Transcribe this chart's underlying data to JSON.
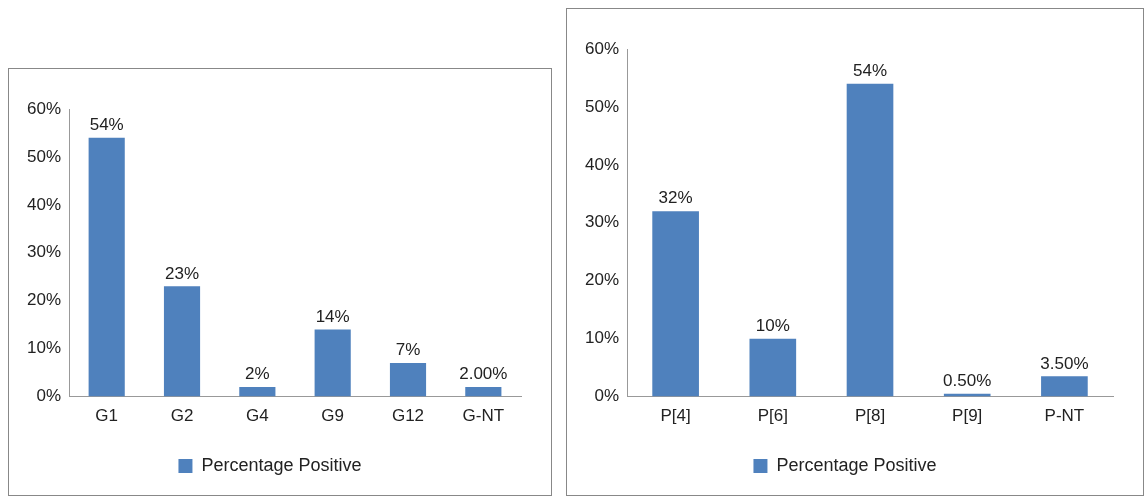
{
  "chart_data": [
    {
      "type": "bar",
      "categories": [
        "G1",
        "G2",
        "G4",
        "G9",
        "G12",
        "G-NT"
      ],
      "series": [
        {
          "name": "Percentage Positive",
          "color": "#4f81bd",
          "values": [
            54,
            23,
            2,
            14,
            7,
            2
          ],
          "value_labels": [
            "54%",
            "23%",
            "2%",
            "14%",
            "7%",
            "2.00%"
          ]
        }
      ],
      "ylim": [
        0,
        60
      ],
      "yticks": [
        {
          "value": 0,
          "label": "0%"
        },
        {
          "value": 10,
          "label": "10%"
        },
        {
          "value": 20,
          "label": "20%"
        },
        {
          "value": 30,
          "label": "30%"
        },
        {
          "value": 40,
          "label": "40%"
        },
        {
          "value": 50,
          "label": "50%"
        },
        {
          "value": 60,
          "label": "60%"
        }
      ],
      "grid": false,
      "legend": "bottom"
    },
    {
      "type": "bar",
      "categories": [
        "P[4]",
        "P[6]",
        "P[8]",
        "P[9]",
        "P-NT"
      ],
      "series": [
        {
          "name": "Percentage Positive",
          "color": "#4f81bd",
          "values": [
            32,
            10,
            54,
            0.5,
            3.5
          ],
          "value_labels": [
            "32%",
            "10%",
            "54%",
            "0.50%",
            "3.50%"
          ]
        }
      ],
      "ylim": [
        0,
        60
      ],
      "yticks": [
        {
          "value": 0,
          "label": "0%"
        },
        {
          "value": 10,
          "label": "10%"
        },
        {
          "value": 20,
          "label": "20%"
        },
        {
          "value": 30,
          "label": "30%"
        },
        {
          "value": 40,
          "label": "40%"
        },
        {
          "value": 50,
          "label": "50%"
        },
        {
          "value": 60,
          "label": "60%"
        }
      ],
      "grid": false,
      "legend": "bottom"
    }
  ]
}
